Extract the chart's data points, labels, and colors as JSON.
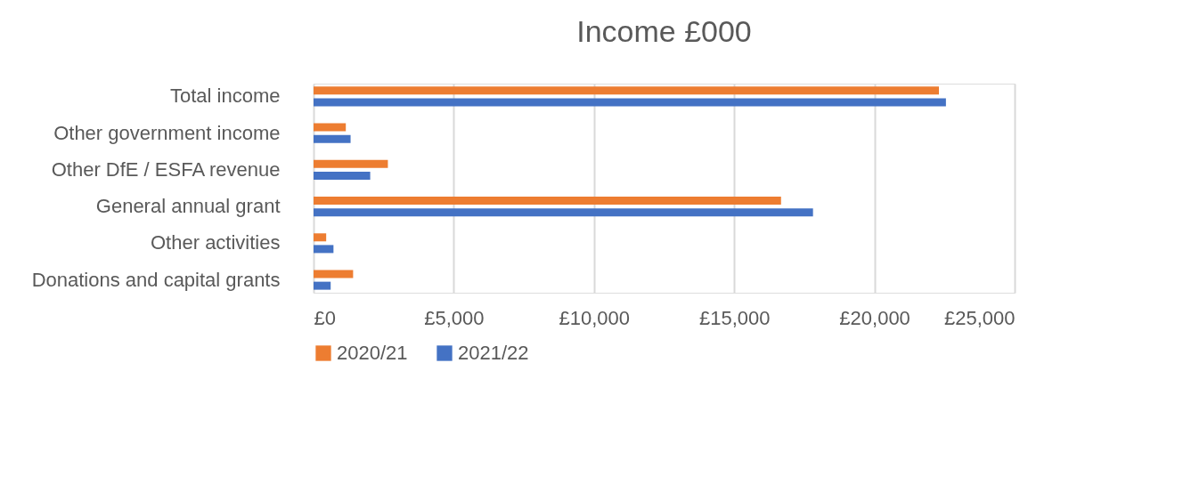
{
  "chart_data": {
    "type": "bar",
    "orientation": "horizontal",
    "title": "Income £000",
    "categories": [
      "Total income",
      "Other government income",
      "Other DfE / ESFA revenue",
      "General annual grant",
      "Other activities",
      "Donations and capital grants"
    ],
    "series": [
      {
        "name": "2020/21",
        "color": "#ed7d31",
        "values": [
          22300,
          1150,
          2650,
          16670,
          450,
          1410
        ]
      },
      {
        "name": "2021/22",
        "color": "#4472c4",
        "values": [
          22550,
          1320,
          2020,
          17810,
          710,
          610
        ]
      }
    ],
    "xlim": [
      0,
      25000
    ],
    "xticks": [
      {
        "value": 0,
        "label": "£0"
      },
      {
        "value": 5000,
        "label": "£5,000"
      },
      {
        "value": 10000,
        "label": "£10,000"
      },
      {
        "value": 15000,
        "label": "£15,000"
      },
      {
        "value": 20000,
        "label": "£20,000"
      },
      {
        "value": 25000,
        "label": "£25,000"
      }
    ],
    "grid": "x",
    "legend": "bottom"
  }
}
